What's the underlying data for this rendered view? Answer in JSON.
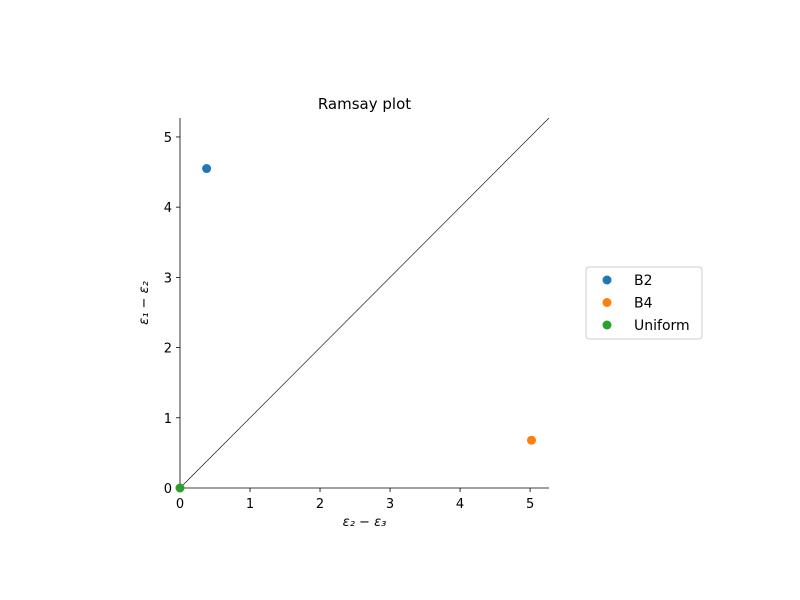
{
  "chart_data": {
    "type": "scatter",
    "title": "Ramsay plot",
    "xlabel": "ε₂ − ε₃",
    "ylabel": "ε₁ − ε₂",
    "xlim": [
      0,
      5.27
    ],
    "ylim": [
      0,
      5.27
    ],
    "xticks": [
      "0",
      "1",
      "2",
      "3",
      "4",
      "5"
    ],
    "yticks": [
      "0",
      "1",
      "2",
      "3",
      "4",
      "5"
    ],
    "reference_line": {
      "from": [
        0,
        0
      ],
      "to": [
        5.27,
        5.27
      ],
      "color": "#000000"
    },
    "series": [
      {
        "name": "B2",
        "color": "#1f77b4",
        "points": [
          {
            "x": 0.38,
            "y": 4.55
          }
        ]
      },
      {
        "name": "B4",
        "color": "#ff7f0e",
        "points": [
          {
            "x": 5.02,
            "y": 0.68
          }
        ]
      },
      {
        "name": "Uniform",
        "color": "#2ca02c",
        "points": [
          {
            "x": 0.0,
            "y": 0.0
          }
        ]
      }
    ],
    "legend_placement": "right, outside",
    "grid": false
  }
}
